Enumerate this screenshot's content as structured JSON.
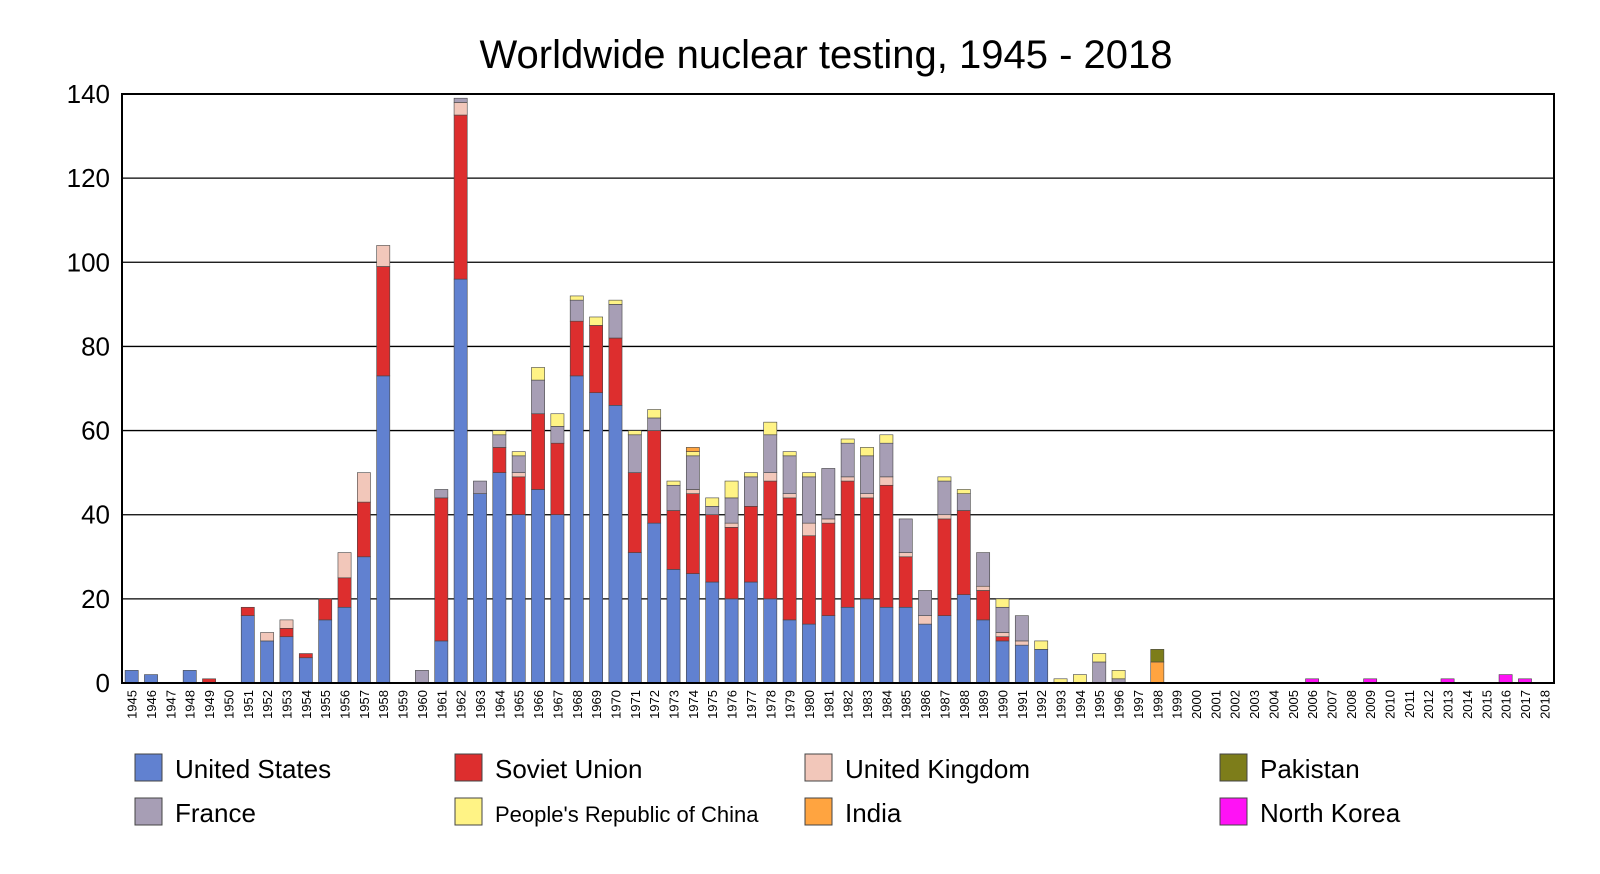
{
  "chart_data": {
    "type": "bar",
    "stacked": true,
    "title": "Worldwide nuclear testing, 1945 - 2018",
    "xlabel": "",
    "ylabel": "",
    "ylim": [
      0,
      140
    ],
    "yticks": [
      0,
      20,
      40,
      60,
      80,
      100,
      120,
      140
    ],
    "grid": "horizontal",
    "legend_position": "bottom",
    "categories": [
      "1945",
      "1946",
      "1947",
      "1948",
      "1949",
      "1950",
      "1951",
      "1952",
      "1953",
      "1954",
      "1955",
      "1956",
      "1957",
      "1958",
      "1959",
      "1960",
      "1961",
      "1962",
      "1963",
      "1964",
      "1965",
      "1966",
      "1967",
      "1968",
      "1969",
      "1970",
      "1971",
      "1972",
      "1973",
      "1974",
      "1975",
      "1976",
      "1977",
      "1978",
      "1979",
      "1980",
      "1981",
      "1982",
      "1983",
      "1984",
      "1985",
      "1986",
      "1987",
      "1988",
      "1989",
      "1990",
      "1991",
      "1992",
      "1993",
      "1994",
      "1995",
      "1996",
      "1997",
      "1998",
      "1999",
      "2000",
      "2001",
      "2002",
      "2003",
      "2004",
      "2005",
      "2006",
      "2007",
      "2008",
      "2009",
      "2010",
      "2011",
      "2012",
      "2013",
      "2014",
      "2015",
      "2016",
      "2017",
      "2018"
    ],
    "series": [
      {
        "name": "United States",
        "color": "#6181D0",
        "values": [
          3,
          2,
          0,
          3,
          0,
          0,
          16,
          10,
          11,
          6,
          15,
          18,
          30,
          73,
          0,
          0,
          10,
          96,
          45,
          50,
          40,
          46,
          40,
          73,
          69,
          66,
          31,
          38,
          27,
          26,
          24,
          20,
          24,
          20,
          15,
          14,
          16,
          18,
          20,
          18,
          18,
          14,
          16,
          21,
          15,
          10,
          9,
          8,
          0,
          0,
          0,
          0,
          0,
          0,
          0,
          0,
          0,
          0,
          0,
          0,
          0,
          0,
          0,
          0,
          0,
          0,
          0,
          0,
          0,
          0,
          0,
          0,
          0,
          0
        ]
      },
      {
        "name": "Soviet Union",
        "color": "#DD2E2E",
        "values": [
          0,
          0,
          0,
          0,
          1,
          0,
          2,
          0,
          2,
          1,
          5,
          7,
          13,
          26,
          0,
          0,
          34,
          39,
          0,
          6,
          9,
          18,
          17,
          13,
          16,
          16,
          19,
          22,
          14,
          19,
          16,
          17,
          18,
          28,
          29,
          21,
          22,
          30,
          24,
          29,
          12,
          0,
          23,
          20,
          7,
          1,
          0,
          0,
          0,
          0,
          0,
          0,
          0,
          0,
          0,
          0,
          0,
          0,
          0,
          0,
          0,
          0,
          0,
          0,
          0,
          0,
          0,
          0,
          0,
          0,
          0,
          0,
          0,
          0
        ]
      },
      {
        "name": "United Kingdom",
        "color": "#F2C7BA",
        "values": [
          0,
          0,
          0,
          0,
          0,
          0,
          0,
          2,
          2,
          0,
          0,
          6,
          7,
          5,
          0,
          0,
          0,
          3,
          0,
          0,
          1,
          0,
          0,
          0,
          0,
          0,
          0,
          0,
          0,
          1,
          0,
          1,
          0,
          2,
          1,
          3,
          1,
          1,
          1,
          2,
          1,
          2,
          1,
          0,
          1,
          1,
          1,
          0,
          0,
          0,
          0,
          0,
          0,
          0,
          0,
          0,
          0,
          0,
          0,
          0,
          0,
          0,
          0,
          0,
          0,
          0,
          0,
          0,
          0,
          0,
          0,
          0,
          0,
          0
        ]
      },
      {
        "name": "France",
        "color": "#A79EB5",
        "values": [
          0,
          0,
          0,
          0,
          0,
          0,
          0,
          0,
          0,
          0,
          0,
          0,
          0,
          0,
          0,
          3,
          2,
          1,
          3,
          3,
          4,
          8,
          4,
          5,
          0,
          8,
          9,
          3,
          6,
          8,
          2,
          6,
          7,
          9,
          9,
          11,
          12,
          8,
          9,
          8,
          8,
          6,
          8,
          4,
          8,
          6,
          6,
          0,
          0,
          0,
          5,
          1,
          0,
          0,
          0,
          0,
          0,
          0,
          0,
          0,
          0,
          0,
          0,
          0,
          0,
          0,
          0,
          0,
          0,
          0,
          0,
          0,
          0,
          0
        ]
      },
      {
        "name": "People's Republic of China",
        "color": "#FFF385",
        "values": [
          0,
          0,
          0,
          0,
          0,
          0,
          0,
          0,
          0,
          0,
          0,
          0,
          0,
          0,
          0,
          0,
          0,
          0,
          0,
          1,
          1,
          3,
          3,
          1,
          2,
          1,
          1,
          2,
          1,
          1,
          2,
          4,
          1,
          3,
          1,
          1,
          0,
          1,
          2,
          2,
          0,
          0,
          1,
          1,
          0,
          2,
          0,
          2,
          1,
          2,
          2,
          2,
          0,
          0,
          0,
          0,
          0,
          0,
          0,
          0,
          0,
          0,
          0,
          0,
          0,
          0,
          0,
          0,
          0,
          0,
          0,
          0,
          0,
          0
        ]
      },
      {
        "name": "India",
        "color": "#FFA440",
        "values": [
          0,
          0,
          0,
          0,
          0,
          0,
          0,
          0,
          0,
          0,
          0,
          0,
          0,
          0,
          0,
          0,
          0,
          0,
          0,
          0,
          0,
          0,
          0,
          0,
          0,
          0,
          0,
          0,
          0,
          1,
          0,
          0,
          0,
          0,
          0,
          0,
          0,
          0,
          0,
          0,
          0,
          0,
          0,
          0,
          0,
          0,
          0,
          0,
          0,
          0,
          0,
          0,
          0,
          5,
          0,
          0,
          0,
          0,
          0,
          0,
          0,
          0,
          0,
          0,
          0,
          0,
          0,
          0,
          0,
          0,
          0,
          0,
          0,
          0
        ]
      },
      {
        "name": "Pakistan",
        "color": "#7D7D1A",
        "values": [
          0,
          0,
          0,
          0,
          0,
          0,
          0,
          0,
          0,
          0,
          0,
          0,
          0,
          0,
          0,
          0,
          0,
          0,
          0,
          0,
          0,
          0,
          0,
          0,
          0,
          0,
          0,
          0,
          0,
          0,
          0,
          0,
          0,
          0,
          0,
          0,
          0,
          0,
          0,
          0,
          0,
          0,
          0,
          0,
          0,
          0,
          0,
          0,
          0,
          0,
          0,
          0,
          0,
          3,
          0,
          0,
          0,
          0,
          0,
          0,
          0,
          0,
          0,
          0,
          0,
          0,
          0,
          0,
          0,
          0,
          0,
          0,
          0,
          0
        ]
      },
      {
        "name": "North Korea",
        "color": "#FF12F5",
        "values": [
          0,
          0,
          0,
          0,
          0,
          0,
          0,
          0,
          0,
          0,
          0,
          0,
          0,
          0,
          0,
          0,
          0,
          0,
          0,
          0,
          0,
          0,
          0,
          0,
          0,
          0,
          0,
          0,
          0,
          0,
          0,
          0,
          0,
          0,
          0,
          0,
          0,
          0,
          0,
          0,
          0,
          0,
          0,
          0,
          0,
          0,
          0,
          0,
          0,
          0,
          0,
          0,
          0,
          0,
          0,
          0,
          0,
          0,
          0,
          0,
          0,
          1,
          0,
          0,
          1,
          0,
          0,
          0,
          1,
          0,
          0,
          2,
          1,
          0
        ]
      }
    ]
  }
}
